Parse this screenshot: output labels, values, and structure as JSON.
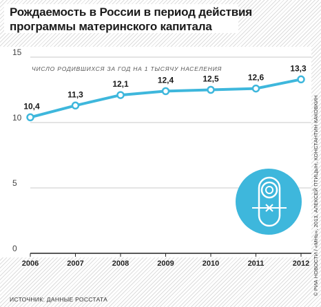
{
  "title": {
    "line1": "Рождаемость в России в период действия",
    "line2": "программы материнского капитала"
  },
  "source": "ИСТОЧНИК: ДАННЫЕ РОССТАТА",
  "credit": "© РИА НОВОСТИ / «МНЬ», 2013, АЛЕКСЕЙ ПТИЦЫН, КОНСТАНТИН КАКОВКИН",
  "icon": "baby-icon",
  "colors": {
    "line": "#3eb7dc",
    "icon_bg": "#3eb7dc",
    "text": "#1a1a1a"
  },
  "chart_data": {
    "type": "line",
    "title": "",
    "subtitle": "ЧИСЛО РОДИВШИХСЯ ЗА ГОД НА 1 ТЫСЯЧУ НАСЕЛЕНИЯ",
    "xlabel": "",
    "ylabel": "",
    "ylim": [
      0,
      15
    ],
    "yticks": [
      "0",
      "5",
      "10",
      "15"
    ],
    "categories": [
      "2006",
      "2007",
      "2008",
      "2009",
      "2010",
      "2011",
      "2012"
    ],
    "series": [
      {
        "values": [
          10.4,
          11.3,
          12.1,
          12.4,
          12.5,
          12.6,
          13.3
        ],
        "labels": [
          "10,4",
          "11,3",
          "12,1",
          "12,4",
          "12,5",
          "12,6",
          "13,3"
        ]
      }
    ],
    "grid": true,
    "legend": "none"
  }
}
